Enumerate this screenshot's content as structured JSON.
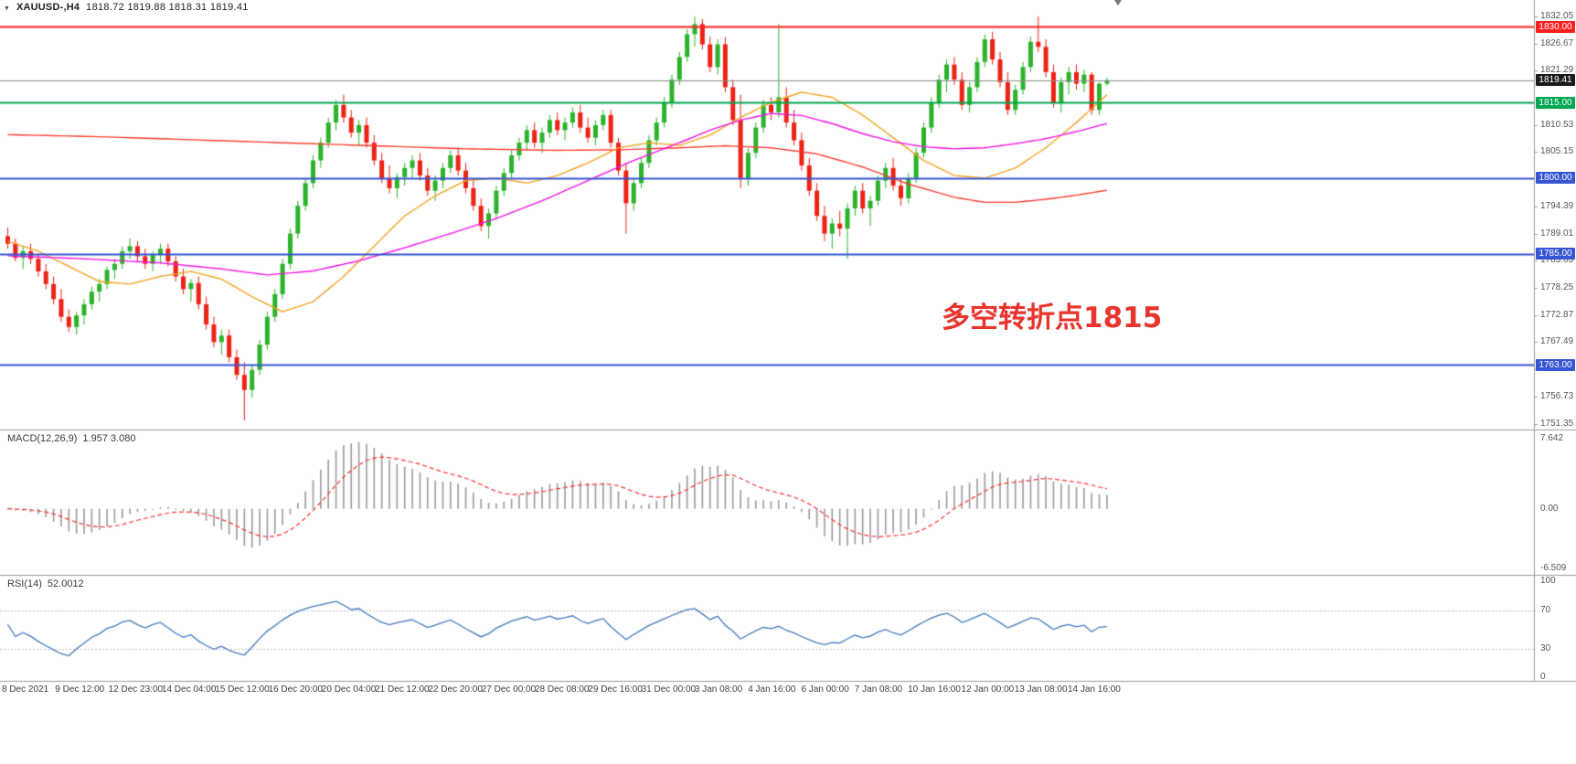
{
  "header": {
    "symbol": "XAUUSD-,H4",
    "ohlc": "1818.72 1819.88 1818.31 1819.41"
  },
  "chart_data": {
    "type": "candlestick",
    "symbol": "XAUUSD-",
    "timeframe": "H4",
    "current_ohlc": {
      "open": 1818.72,
      "high": 1819.88,
      "low": 1818.31,
      "close": 1819.41
    },
    "candle_colors": {
      "up": "#2bb32b",
      "down": "#ed2215"
    },
    "price_axis": {
      "range": [
        1750.9,
        1834.2
      ],
      "ticks": [
        "1832.05",
        "1826.67",
        "1821.29",
        "1810.53",
        "1805.15",
        "1794.39",
        "1789.01",
        "1783.63",
        "1778.25",
        "1772.87",
        "1767.49",
        "1762.11",
        "1756.73",
        "1751.35"
      ]
    },
    "time_labels": [
      "8 Dec 2021",
      "9 Dec 12:00",
      "12 Dec 23:00",
      "14 Dec 04:00",
      "15 Dec 12:00",
      "16 Dec 20:00",
      "20 Dec 04:00",
      "21 Dec 12:00",
      "22 Dec 20:00",
      "27 Dec 00:00",
      "28 Dec 08:00",
      "29 Dec 16:00",
      "31 Dec 00:00",
      "3 Jan 08:00",
      "4 Jan 16:00",
      "6 Jan 00:00",
      "7 Jan 08:00",
      "10 Jan 16:00",
      "12 Jan 00:00",
      "13 Jan 08:00",
      "14 Jan 16:00"
    ],
    "horizontal_lines": [
      {
        "price": 1830.0,
        "label": "1830.00",
        "color": "#ff1f1f",
        "line_width": 2
      },
      {
        "price": 1819.41,
        "label": "1819.41",
        "color": "#1b1b1b",
        "line_color": "#8a8a8a",
        "line_width": 1,
        "current_price": true
      },
      {
        "price": 1815.0,
        "label": "1815.00",
        "color": "#00a651",
        "line_width": 2
      },
      {
        "price": 1800.0,
        "label": "1800.00",
        "color": "#3655d3",
        "line_width": 2
      },
      {
        "price": 1785.0,
        "label": "1785.00",
        "color": "#3655d3",
        "line_width": 2
      },
      {
        "price": 1763.0,
        "label": "1763.00",
        "color": "#3655d3",
        "line_width": 2
      }
    ],
    "moving_averages": [
      {
        "name": "slow-ma",
        "color": "#ff3b30",
        "points": [
          [
            0,
            1808.6
          ],
          [
            12,
            1808.2
          ],
          [
            24,
            1807.6
          ],
          [
            36,
            1807.0
          ],
          [
            48,
            1806.4
          ],
          [
            60,
            1805.8
          ],
          [
            72,
            1805.5
          ],
          [
            80,
            1805.6
          ],
          [
            88,
            1806.0
          ],
          [
            94,
            1806.4
          ],
          [
            100,
            1806.0
          ],
          [
            106,
            1804.8
          ],
          [
            112,
            1802.2
          ],
          [
            118,
            1798.8
          ],
          [
            124,
            1796.2
          ],
          [
            128,
            1795.2
          ],
          [
            132,
            1795.2
          ],
          [
            136,
            1795.8
          ],
          [
            140,
            1796.6
          ],
          [
            144,
            1797.6
          ]
        ]
      },
      {
        "name": "fast-ma",
        "color": "#f5a21f",
        "points": [
          [
            0,
            1787.5
          ],
          [
            4,
            1785.5
          ],
          [
            8,
            1782.5
          ],
          [
            12,
            1779.5
          ],
          [
            16,
            1779.0
          ],
          [
            20,
            1780.5
          ],
          [
            24,
            1781.5
          ],
          [
            28,
            1780.0
          ],
          [
            32,
            1776.5
          ],
          [
            36,
            1773.5
          ],
          [
            40,
            1775.5
          ],
          [
            44,
            1780.5
          ],
          [
            48,
            1786.5
          ],
          [
            52,
            1792.5
          ],
          [
            56,
            1796.5
          ],
          [
            60,
            1799.5
          ],
          [
            64,
            1800.0
          ],
          [
            68,
            1799.0
          ],
          [
            72,
            1800.5
          ],
          [
            76,
            1803.0
          ],
          [
            80,
            1806.0
          ],
          [
            84,
            1807.0
          ],
          [
            88,
            1806.5
          ],
          [
            92,
            1808.5
          ],
          [
            96,
            1812.0
          ],
          [
            100,
            1815.0
          ],
          [
            104,
            1817.0
          ],
          [
            108,
            1816.0
          ],
          [
            112,
            1812.5
          ],
          [
            116,
            1808.0
          ],
          [
            120,
            1803.5
          ],
          [
            124,
            1800.5
          ],
          [
            128,
            1800.0
          ],
          [
            132,
            1802.0
          ],
          [
            136,
            1806.0
          ],
          [
            140,
            1811.0
          ],
          [
            144,
            1816.5
          ]
        ]
      },
      {
        "name": "mid-ma",
        "color": "#f414e4",
        "points": [
          [
            0,
            1784.6
          ],
          [
            10,
            1784.0
          ],
          [
            20,
            1783.2
          ],
          [
            28,
            1782.0
          ],
          [
            34,
            1780.8
          ],
          [
            40,
            1781.6
          ],
          [
            46,
            1783.6
          ],
          [
            52,
            1786.2
          ],
          [
            58,
            1789.0
          ],
          [
            64,
            1792.0
          ],
          [
            70,
            1795.5
          ],
          [
            76,
            1799.5
          ],
          [
            82,
            1803.5
          ],
          [
            88,
            1807.0
          ],
          [
            92,
            1809.5
          ],
          [
            96,
            1811.5
          ],
          [
            100,
            1812.8
          ],
          [
            104,
            1812.4
          ],
          [
            108,
            1810.8
          ],
          [
            112,
            1808.8
          ],
          [
            116,
            1807.2
          ],
          [
            120,
            1806.2
          ],
          [
            124,
            1805.8
          ],
          [
            128,
            1806.0
          ],
          [
            132,
            1806.8
          ],
          [
            136,
            1807.8
          ],
          [
            140,
            1809.2
          ],
          [
            144,
            1810.8
          ]
        ]
      }
    ],
    "candles": [
      [
        1788.5,
        1790.2,
        1786,
        1787
      ],
      [
        1787,
        1788,
        1783.5,
        1784.2
      ],
      [
        1784.2,
        1786.5,
        1782,
        1785.5
      ],
      [
        1785.5,
        1787,
        1783,
        1784
      ],
      [
        1784,
        1785,
        1780.5,
        1781.5
      ],
      [
        1781.5,
        1783,
        1778,
        1779
      ],
      [
        1779,
        1780.5,
        1775,
        1776
      ],
      [
        1776,
        1778,
        1771.5,
        1772.5
      ],
      [
        1772.5,
        1774,
        1769.5,
        1770.5
      ],
      [
        1770.5,
        1773.5,
        1769,
        1772.8
      ],
      [
        1772.8,
        1776,
        1771,
        1775
      ],
      [
        1775,
        1778.5,
        1774,
        1777.5
      ],
      [
        1777.5,
        1780,
        1775.5,
        1779
      ],
      [
        1779,
        1782.5,
        1778,
        1781.8
      ],
      [
        1781.8,
        1784,
        1780,
        1783
      ],
      [
        1783,
        1786.5,
        1782,
        1785.5
      ],
      [
        1785.5,
        1788,
        1784,
        1786.5
      ],
      [
        1786.5,
        1787.5,
        1783.5,
        1784.5
      ],
      [
        1784.5,
        1786,
        1782,
        1783
      ],
      [
        1783,
        1785.5,
        1781.5,
        1784.8
      ],
      [
        1784.8,
        1787,
        1783,
        1786
      ],
      [
        1786,
        1787,
        1782.5,
        1783.5
      ],
      [
        1783.5,
        1784.5,
        1779.5,
        1780.5
      ],
      [
        1780.5,
        1782,
        1777,
        1778
      ],
      [
        1778,
        1780,
        1775.5,
        1779.2
      ],
      [
        1779.2,
        1780.5,
        1774,
        1775
      ],
      [
        1775,
        1776.5,
        1770,
        1771
      ],
      [
        1771,
        1772.5,
        1766.5,
        1767.5
      ],
      [
        1767.5,
        1770,
        1765,
        1768.8
      ],
      [
        1768.8,
        1770,
        1763.5,
        1764.5
      ],
      [
        1764.5,
        1766,
        1760,
        1761
      ],
      [
        1761,
        1763.5,
        1752,
        1758
      ],
      [
        1758,
        1763,
        1756.5,
        1762
      ],
      [
        1762,
        1768,
        1761,
        1767
      ],
      [
        1767,
        1773.5,
        1766,
        1772.5
      ],
      [
        1772.5,
        1778,
        1771.5,
        1777
      ],
      [
        1777,
        1784,
        1776,
        1783
      ],
      [
        1783,
        1790,
        1782,
        1789
      ],
      [
        1789,
        1795.5,
        1788,
        1794.5
      ],
      [
        1794.5,
        1800,
        1793.5,
        1799
      ],
      [
        1799,
        1804.5,
        1798,
        1803.5
      ],
      [
        1803.5,
        1808,
        1802,
        1807
      ],
      [
        1807,
        1812,
        1806,
        1811
      ],
      [
        1811,
        1815.5,
        1809.5,
        1814.5
      ],
      [
        1814.5,
        1816.5,
        1811,
        1812
      ],
      [
        1812,
        1813.5,
        1808,
        1809
      ],
      [
        1809,
        1811.5,
        1806.5,
        1810.5
      ],
      [
        1810.5,
        1812,
        1806,
        1807
      ],
      [
        1807,
        1808.5,
        1802.5,
        1803.5
      ],
      [
        1803.5,
        1805,
        1799,
        1800
      ],
      [
        1800,
        1802.5,
        1797,
        1798
      ],
      [
        1798,
        1801,
        1796,
        1800.2
      ],
      [
        1800.2,
        1803,
        1798.5,
        1802
      ],
      [
        1802,
        1804.5,
        1800,
        1803.5
      ],
      [
        1803.5,
        1805,
        1799.5,
        1800.5
      ],
      [
        1800.5,
        1802,
        1796.5,
        1797.5
      ],
      [
        1797.5,
        1800.5,
        1795.5,
        1799.5
      ],
      [
        1799.5,
        1803,
        1798,
        1802
      ],
      [
        1802,
        1805.5,
        1801,
        1804.5
      ],
      [
        1804.5,
        1806,
        1800.5,
        1801.5
      ],
      [
        1801.5,
        1803,
        1797,
        1798
      ],
      [
        1798,
        1799.5,
        1793.5,
        1794.5
      ],
      [
        1794.5,
        1796,
        1789.5,
        1790.5
      ],
      [
        1790.5,
        1794,
        1788,
        1793
      ],
      [
        1793,
        1798.5,
        1792,
        1797.5
      ],
      [
        1797.5,
        1802,
        1796.5,
        1801
      ],
      [
        1801,
        1805.5,
        1800,
        1804.5
      ],
      [
        1804.5,
        1808,
        1803.5,
        1807
      ],
      [
        1807,
        1810.5,
        1805.5,
        1809.5
      ],
      [
        1809.5,
        1811,
        1806,
        1807
      ],
      [
        1807,
        1810,
        1805,
        1809
      ],
      [
        1809,
        1812.5,
        1808,
        1811.5
      ],
      [
        1811.5,
        1813,
        1808.5,
        1809.5
      ],
      [
        1809.5,
        1812,
        1807.5,
        1811
      ],
      [
        1811,
        1814,
        1810,
        1813
      ],
      [
        1813,
        1814.5,
        1809,
        1810
      ],
      [
        1810,
        1812,
        1807,
        1808
      ],
      [
        1808,
        1811.5,
        1806.5,
        1810.5
      ],
      [
        1810.5,
        1813.5,
        1809.5,
        1812.5
      ],
      [
        1812.5,
        1813.5,
        1806,
        1807
      ],
      [
        1807,
        1808,
        1800.5,
        1801.5
      ],
      [
        1801.5,
        1803,
        1789,
        1795
      ],
      [
        1795,
        1800,
        1793.5,
        1799
      ],
      [
        1799,
        1804,
        1798,
        1803
      ],
      [
        1803,
        1808.5,
        1802,
        1807.5
      ],
      [
        1807.5,
        1812,
        1806.5,
        1811
      ],
      [
        1811,
        1816,
        1810,
        1815
      ],
      [
        1815,
        1820.5,
        1814,
        1819.5
      ],
      [
        1819.5,
        1825,
        1818.5,
        1824
      ],
      [
        1824,
        1829.5,
        1823,
        1828.5
      ],
      [
        1828.5,
        1832,
        1826,
        1830.5
      ],
      [
        1830.5,
        1831.5,
        1825.5,
        1826.5
      ],
      [
        1826.5,
        1828,
        1821,
        1822
      ],
      [
        1822,
        1827.5,
        1820.5,
        1826.5
      ],
      [
        1826.5,
        1828,
        1817,
        1818
      ],
      [
        1818,
        1819.5,
        1810.5,
        1811.5
      ],
      [
        1811.5,
        1816.5,
        1798,
        1800
      ],
      [
        1800,
        1806,
        1798.5,
        1805
      ],
      [
        1805,
        1811,
        1804,
        1810
      ],
      [
        1810,
        1815.5,
        1809,
        1814.5
      ],
      [
        1814.5,
        1816,
        1811.5,
        1813
      ],
      [
        1813,
        1830.5,
        1812,
        1816
      ],
      [
        1816,
        1818,
        1810,
        1811
      ],
      [
        1811,
        1813.5,
        1806.5,
        1807.5
      ],
      [
        1807.5,
        1809,
        1801.5,
        1802.5
      ],
      [
        1802.5,
        1804,
        1796.5,
        1797.5
      ],
      [
        1797.5,
        1799,
        1791.5,
        1792.5
      ],
      [
        1792.5,
        1794.5,
        1787.5,
        1789
      ],
      [
        1789,
        1792,
        1786,
        1791
      ],
      [
        1791,
        1793.5,
        1788.5,
        1790
      ],
      [
        1790,
        1795,
        1784,
        1794
      ],
      [
        1794,
        1798.5,
        1792.5,
        1797.5
      ],
      [
        1797.5,
        1799,
        1793,
        1794
      ],
      [
        1794,
        1796.5,
        1790.5,
        1795.5
      ],
      [
        1795.5,
        1800.5,
        1794.5,
        1799.5
      ],
      [
        1799.5,
        1803,
        1798,
        1802
      ],
      [
        1802,
        1804,
        1797.5,
        1798.5
      ],
      [
        1798.5,
        1800,
        1794.5,
        1796
      ],
      [
        1796,
        1801,
        1795,
        1800
      ],
      [
        1800,
        1806,
        1799,
        1805
      ],
      [
        1805,
        1811,
        1804,
        1810
      ],
      [
        1810,
        1816,
        1809,
        1815
      ],
      [
        1815,
        1820.5,
        1814,
        1819.5
      ],
      [
        1819.5,
        1823.5,
        1817,
        1822.5
      ],
      [
        1822.5,
        1824,
        1818.5,
        1819.5
      ],
      [
        1819.5,
        1821,
        1813.5,
        1814.5
      ],
      [
        1814.5,
        1819,
        1813,
        1818
      ],
      [
        1818,
        1824,
        1817,
        1823
      ],
      [
        1823,
        1828.5,
        1822,
        1827.5
      ],
      [
        1827.5,
        1829,
        1822.5,
        1823.5
      ],
      [
        1823.5,
        1825,
        1818,
        1819
      ],
      [
        1819,
        1821,
        1812.5,
        1813.5
      ],
      [
        1813.5,
        1818.5,
        1812.5,
        1817.5
      ],
      [
        1817.5,
        1823,
        1816.5,
        1822
      ],
      [
        1822,
        1828,
        1821,
        1827
      ],
      [
        1827,
        1832,
        1825,
        1826
      ],
      [
        1826,
        1827.5,
        1820,
        1821
      ],
      [
        1821,
        1822.5,
        1814,
        1815
      ],
      [
        1815,
        1820,
        1813,
        1819
      ],
      [
        1819,
        1822,
        1816.5,
        1821
      ],
      [
        1821,
        1822.5,
        1817.5,
        1818.7
      ],
      [
        1818.7,
        1821.5,
        1817,
        1820.5
      ],
      [
        1820.5,
        1821,
        1812.5,
        1813.5
      ],
      [
        1813.5,
        1819,
        1812.5,
        1818.7
      ],
      [
        1818.72,
        1819.88,
        1818.31,
        1819.41
      ]
    ],
    "indicators": {
      "macd": {
        "label": "MACD(12,26,9)",
        "values": "1.957 3.080",
        "params": [
          12,
          26,
          9
        ],
        "axis_ticks": [
          "7.642",
          "0.00",
          "-6.509"
        ],
        "histogram_color": "#9a9a9a",
        "signal_color": "#ff3232"
      },
      "rsi": {
        "label": "RSI(14)",
        "value": "52.0012",
        "period": 14,
        "axis_ticks": [
          "100",
          "70",
          "30",
          "0"
        ],
        "levels": [
          70,
          30
        ],
        "line_color": "#4179c0"
      }
    },
    "annotation": {
      "text": "多空转折点1815",
      "color": "#e8352e"
    }
  }
}
